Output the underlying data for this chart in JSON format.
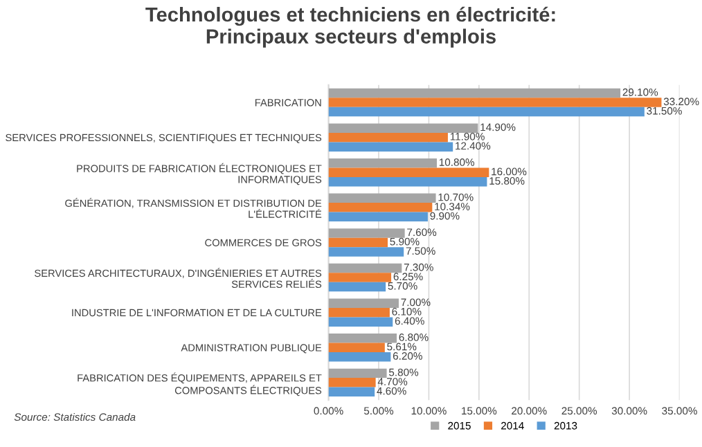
{
  "chart_data": {
    "type": "bar",
    "orientation": "horizontal",
    "title": "Technologues et techniciens en électricité:\nPrincipaux secteurs d'emplois",
    "categories": [
      "FABRICATION",
      "SERVICES PROFESSIONNELS, SCIENTIFIQUES ET TECHNIQUES",
      "PRODUITS DE FABRICATION ÉLECTRONIQUES ET\nINFORMATIQUES",
      "GÉNÉRATION, TRANSMISSION ET DISTRIBUTION DE\nL'ÉLECTRICITÉ",
      "COMMERCES DE GROS",
      "SERVICES ARCHITECTURAUX, D'INGÉNIERIES ET AUTRES\nSERVICES RELIÉS",
      "INDUSTRIE DE L'INFORMATION ET DE LA CULTURE",
      "ADMINISTRATION PUBLIQUE",
      "FABRICATION DES ÉQUIPEMENTS, APPAREILS ET\nCOMPOSANTS ÉLECTRIQUES"
    ],
    "series": [
      {
        "name": "2015",
        "color": "#a5a5a5",
        "values": [
          29.1,
          14.9,
          10.8,
          10.7,
          7.6,
          7.3,
          7.0,
          6.8,
          5.8
        ],
        "value_labels": [
          "29.10%",
          "14.90%",
          "10.80%",
          "10.70%",
          "7.60%",
          "7.30%",
          "7.00%",
          "6.80%",
          "5.80%"
        ]
      },
      {
        "name": "2014",
        "color": "#ed7d31",
        "values": [
          33.2,
          11.9,
          16.0,
          10.34,
          5.9,
          6.25,
          6.1,
          5.61,
          4.7
        ],
        "value_labels": [
          "33.20%",
          "11.90%",
          "16.00%",
          "10.34%",
          "5.90%",
          "6.25%",
          "6.10%",
          "5.61%",
          "4.70%"
        ]
      },
      {
        "name": "2013",
        "color": "#5b9bd5",
        "values": [
          31.5,
          12.4,
          15.8,
          9.9,
          7.5,
          5.7,
          6.4,
          6.2,
          4.6
        ],
        "value_labels": [
          "31.50%",
          "12.40%",
          "15.80%",
          "9.90%",
          "7.50%",
          "5.70%",
          "6.40%",
          "6.20%",
          "4.60%"
        ]
      }
    ],
    "xlim": [
      0,
      35
    ],
    "xticks": [
      {
        "value": 0,
        "label": "0.00%"
      },
      {
        "value": 5,
        "label": "5.00%"
      },
      {
        "value": 10,
        "label": "10.00%"
      },
      {
        "value": 15,
        "label": "15.00%"
      },
      {
        "value": 20,
        "label": "20.00%"
      },
      {
        "value": 25,
        "label": "25.00%"
      },
      {
        "value": 30,
        "label": "30.00%"
      },
      {
        "value": 35,
        "label": "35.00%"
      }
    ],
    "grid": "x",
    "legend": "bottom",
    "annotations": [
      "Source: Statistics Canada"
    ]
  }
}
